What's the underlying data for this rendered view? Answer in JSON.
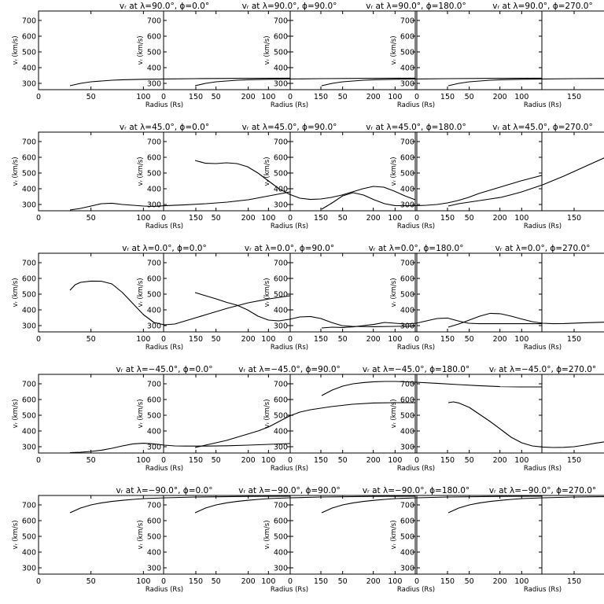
{
  "common": {
    "xlabel": "Radius (Rs)",
    "ylabel": "vᵣ (km/s)",
    "xlim": [
      0,
      240
    ],
    "ylim": [
      260,
      760
    ],
    "xticks": [
      0,
      50,
      100,
      150,
      200
    ],
    "yticks": [
      300,
      400,
      500,
      600,
      700
    ],
    "line_color": "#000000"
  },
  "chart_data": [
    {
      "type": "line",
      "title": "vᵣ at λ=90.0°, ϕ=0.0°",
      "xlabel": "Radius (Rs)",
      "ylabel": "vᵣ (km/s)",
      "xlim": [
        0,
        240
      ],
      "ylim": [
        260,
        760
      ],
      "x": [
        30,
        40,
        50,
        60,
        70,
        80,
        100,
        120,
        150,
        200,
        240
      ],
      "y": [
        285,
        300,
        310,
        315,
        320,
        323,
        326,
        328,
        330,
        332,
        333
      ]
    },
    {
      "type": "line",
      "title": "vᵣ at λ=90.0°, ϕ=90.0°",
      "xlabel": "Radius (Rs)",
      "ylabel": "vᵣ (km/s)",
      "xlim": [
        0,
        240
      ],
      "ylim": [
        260,
        760
      ],
      "x": [
        30,
        40,
        50,
        60,
        70,
        80,
        100,
        120,
        150,
        200,
        240
      ],
      "y": [
        285,
        300,
        310,
        315,
        320,
        323,
        326,
        328,
        330,
        332,
        333
      ]
    },
    {
      "type": "line",
      "title": "vᵣ at λ=90.0°, ϕ=180.0°",
      "xlabel": "Radius (Rs)",
      "ylabel": "vᵣ (km/s)",
      "xlim": [
        0,
        240
      ],
      "ylim": [
        260,
        760
      ],
      "x": [
        30,
        40,
        50,
        60,
        70,
        80,
        100,
        120,
        150,
        200,
        240
      ],
      "y": [
        285,
        300,
        310,
        315,
        320,
        323,
        326,
        328,
        330,
        332,
        333
      ]
    },
    {
      "type": "line",
      "title": "vᵣ at λ=90.0°, ϕ=270.0°",
      "xlabel": "Radius (Rs)",
      "ylabel": "vᵣ (km/s)",
      "xlim": [
        0,
        240
      ],
      "ylim": [
        260,
        760
      ],
      "x": [
        30,
        40,
        50,
        60,
        70,
        80,
        100,
        120,
        150,
        200,
        240
      ],
      "y": [
        285,
        300,
        310,
        315,
        320,
        323,
        326,
        328,
        330,
        332,
        333
      ]
    },
    {
      "type": "line",
      "title": "vᵣ at λ=45.0°, ϕ=0.0°",
      "xlabel": "Radius (Rs)",
      "ylabel": "vᵣ (km/s)",
      "xlim": [
        0,
        240
      ],
      "ylim": [
        260,
        760
      ],
      "x": [
        30,
        40,
        50,
        60,
        70,
        80,
        90,
        100,
        110,
        120,
        140,
        160,
        180,
        200,
        220,
        240
      ],
      "y": [
        265,
        275,
        290,
        305,
        308,
        300,
        295,
        290,
        288,
        292,
        298,
        305,
        315,
        330,
        355,
        380
      ]
    },
    {
      "type": "line",
      "title": "vᵣ at λ=45.0°, ϕ=90.0°",
      "xlabel": "Radius (Rs)",
      "ylabel": "vᵣ (km/s)",
      "xlim": [
        0,
        240
      ],
      "ylim": [
        260,
        760
      ],
      "x": [
        30,
        40,
        50,
        60,
        70,
        80,
        90,
        100,
        110,
        120,
        130,
        140,
        150,
        160,
        170,
        180,
        190,
        200,
        210,
        220,
        230,
        240
      ],
      "y": [
        580,
        562,
        560,
        565,
        560,
        540,
        500,
        450,
        400,
        365,
        340,
        332,
        335,
        345,
        360,
        380,
        400,
        415,
        410,
        385,
        355,
        330
      ]
    },
    {
      "type": "line",
      "title": "vᵣ at λ=45.0°, ϕ=180.0°",
      "xlabel": "Radius (Rs)",
      "ylabel": "vᵣ (km/s)",
      "xlim": [
        0,
        240
      ],
      "ylim": [
        260,
        760
      ],
      "x": [
        30,
        40,
        50,
        60,
        70,
        80,
        90,
        100,
        110,
        120,
        130,
        140,
        150,
        160,
        170,
        180,
        200,
        220,
        240
      ],
      "y": [
        270,
        310,
        355,
        375,
        360,
        330,
        305,
        293,
        292,
        292,
        295,
        300,
        310,
        325,
        345,
        370,
        410,
        450,
        485
      ]
    },
    {
      "type": "line",
      "title": "vᵣ at λ=45.0°, ϕ=270.0°",
      "xlabel": "Radius (Rs)",
      "ylabel": "vᵣ (km/s)",
      "xlim": [
        0,
        240
      ],
      "ylim": [
        260,
        760
      ],
      "x": [
        30,
        40,
        50,
        60,
        70,
        80,
        90,
        100,
        120,
        140,
        160,
        180,
        200,
        210,
        220,
        230,
        240
      ],
      "y": [
        290,
        305,
        315,
        325,
        335,
        345,
        362,
        380,
        425,
        480,
        540,
        600,
        650,
        670,
        680,
        670,
        610
      ]
    },
    {
      "type": "line",
      "title": "vᵣ at λ=0.0°, ϕ=0.0°",
      "xlabel": "Radius (Rs)",
      "ylabel": "vᵣ (km/s)",
      "xlim": [
        0,
        240
      ],
      "ylim": [
        260,
        760
      ],
      "x": [
        30,
        35,
        40,
        50,
        60,
        70,
        80,
        90,
        100,
        110,
        120,
        130,
        140,
        160,
        180,
        200,
        220,
        240
      ],
      "y": [
        525,
        560,
        575,
        583,
        582,
        565,
        510,
        440,
        370,
        320,
        305,
        310,
        330,
        370,
        410,
        445,
        470,
        490
      ]
    },
    {
      "type": "line",
      "title": "vᵣ at λ=0.0°, ϕ=90.0°",
      "xlabel": "Radius (Rs)",
      "ylabel": "vᵣ (km/s)",
      "xlim": [
        0,
        240
      ],
      "ylim": [
        260,
        760
      ],
      "x": [
        30,
        40,
        50,
        60,
        70,
        80,
        90,
        100,
        110,
        120,
        130,
        140,
        150,
        160,
        170,
        180,
        200,
        220,
        240
      ],
      "y": [
        510,
        490,
        470,
        448,
        430,
        400,
        360,
        335,
        330,
        340,
        355,
        358,
        345,
        320,
        300,
        295,
        293,
        295,
        297
      ]
    },
    {
      "type": "line",
      "title": "vᵣ at λ=0.0°, ϕ=180.0°",
      "xlabel": "Radius (Rs)",
      "ylabel": "vᵣ (km/s)",
      "xlim": [
        0,
        240
      ],
      "ylim": [
        260,
        760
      ],
      "x": [
        30,
        40,
        50,
        60,
        70,
        80,
        90,
        100,
        110,
        120,
        130,
        140,
        150,
        160,
        170,
        180,
        200,
        220,
        240
      ],
      "y": [
        285,
        290,
        288,
        292,
        300,
        308,
        320,
        315,
        310,
        315,
        330,
        345,
        348,
        330,
        315,
        312,
        312,
        312,
        312
      ]
    },
    {
      "type": "line",
      "title": "vᵣ at λ=0.0°, ϕ=270.0°",
      "xlabel": "Radius (Rs)",
      "ylabel": "vᵣ (km/s)",
      "xlim": [
        0,
        240
      ],
      "ylim": [
        260,
        760
      ],
      "x": [
        30,
        40,
        50,
        60,
        70,
        80,
        90,
        100,
        110,
        120,
        130,
        140,
        160,
        180,
        200,
        220,
        240
      ],
      "y": [
        290,
        310,
        335,
        360,
        378,
        375,
        360,
        342,
        325,
        315,
        312,
        313,
        318,
        322,
        330,
        345,
        365
      ]
    },
    {
      "type": "line",
      "title": "vᵣ at λ=−45.0°, ϕ=0.0°",
      "xlabel": "Radius (Rs)",
      "ylabel": "vᵣ (km/s)",
      "xlim": [
        0,
        240
      ],
      "ylim": [
        260,
        760
      ],
      "x": [
        30,
        40,
        50,
        60,
        70,
        80,
        90,
        100,
        110,
        120,
        130,
        140,
        160,
        180,
        200,
        220,
        240
      ],
      "y": [
        262,
        265,
        270,
        278,
        290,
        305,
        318,
        322,
        318,
        310,
        305,
        304,
        304,
        306,
        310,
        315,
        320
      ]
    },
    {
      "type": "line",
      "title": "vᵣ at λ=−45.0°, ϕ=90.0°",
      "xlabel": "Radius (Rs)",
      "ylabel": "vᵣ (km/s)",
      "xlim": [
        0,
        240
      ],
      "ylim": [
        260,
        760
      ],
      "x": [
        30,
        40,
        50,
        60,
        70,
        80,
        90,
        100,
        110,
        120,
        130,
        140,
        150,
        160,
        180,
        200,
        220,
        240
      ],
      "y": [
        295,
        310,
        325,
        340,
        360,
        380,
        400,
        425,
        460,
        495,
        520,
        535,
        545,
        555,
        570,
        578,
        580,
        580
      ]
    },
    {
      "type": "line",
      "title": "vᵣ at λ=−45.0°, ϕ=180.0°",
      "xlabel": "Radius (Rs)",
      "ylabel": "vᵣ (km/s)",
      "xlim": [
        0,
        240
      ],
      "ylim": [
        260,
        760
      ],
      "x": [
        30,
        40,
        50,
        60,
        70,
        80,
        90,
        100,
        120,
        140,
        160,
        180,
        200,
        220,
        240
      ],
      "y": [
        625,
        660,
        685,
        700,
        708,
        713,
        715,
        715,
        710,
        703,
        695,
        688,
        682,
        680,
        680
      ]
    },
    {
      "type": "line",
      "title": "vᵣ at λ=−45.0°, ϕ=270.0°",
      "xlabel": "Radius (Rs)",
      "ylabel": "vᵣ (km/s)",
      "xlim": [
        0,
        240
      ],
      "ylim": [
        260,
        760
      ],
      "x": [
        30,
        35,
        40,
        50,
        60,
        70,
        80,
        90,
        100,
        110,
        120,
        130,
        140,
        150,
        160,
        170,
        180,
        190,
        200,
        210,
        220,
        230,
        240
      ],
      "y": [
        580,
        585,
        578,
        550,
        505,
        460,
        410,
        360,
        325,
        305,
        298,
        295,
        296,
        300,
        310,
        322,
        332,
        340,
        345,
        346,
        344,
        340,
        335
      ]
    },
    {
      "type": "line",
      "title": "vᵣ at λ=−90.0°, ϕ=0.0°",
      "xlabel": "Radius (Rs)",
      "ylabel": "vᵣ (km/s)",
      "xlim": [
        0,
        240
      ],
      "ylim": [
        260,
        760
      ],
      "x": [
        30,
        40,
        50,
        60,
        70,
        80,
        90,
        100,
        120,
        150,
        200,
        240
      ],
      "y": [
        650,
        680,
        700,
        713,
        722,
        729,
        735,
        740,
        745,
        750,
        754,
        755
      ]
    },
    {
      "type": "line",
      "title": "vᵣ at λ=−90.0°, ϕ=90.0°",
      "xlabel": "Radius (Rs)",
      "ylabel": "vᵣ (km/s)",
      "xlim": [
        0,
        240
      ],
      "ylim": [
        260,
        760
      ],
      "x": [
        30,
        40,
        50,
        60,
        70,
        80,
        90,
        100,
        120,
        150,
        200,
        240
      ],
      "y": [
        650,
        680,
        700,
        713,
        722,
        729,
        735,
        740,
        745,
        750,
        754,
        755
      ]
    },
    {
      "type": "line",
      "title": "vᵣ at λ=−90.0°, ϕ=180.0°",
      "xlabel": "Radius (Rs)",
      "ylabel": "vᵣ (km/s)",
      "xlim": [
        0,
        240
      ],
      "ylim": [
        260,
        760
      ],
      "x": [
        30,
        40,
        50,
        60,
        70,
        80,
        90,
        100,
        120,
        150,
        200,
        240
      ],
      "y": [
        650,
        680,
        700,
        713,
        722,
        729,
        735,
        740,
        745,
        750,
        754,
        755
      ]
    },
    {
      "type": "line",
      "title": "vᵣ at λ=−90.0°, ϕ=270.0°",
      "xlabel": "Radius (Rs)",
      "ylabel": "vᵣ (km/s)",
      "xlim": [
        0,
        240
      ],
      "ylim": [
        260,
        760
      ],
      "x": [
        30,
        40,
        50,
        60,
        70,
        80,
        90,
        100,
        120,
        150,
        200,
        240
      ],
      "y": [
        650,
        680,
        700,
        713,
        722,
        729,
        735,
        740,
        745,
        750,
        754,
        755
      ]
    }
  ]
}
